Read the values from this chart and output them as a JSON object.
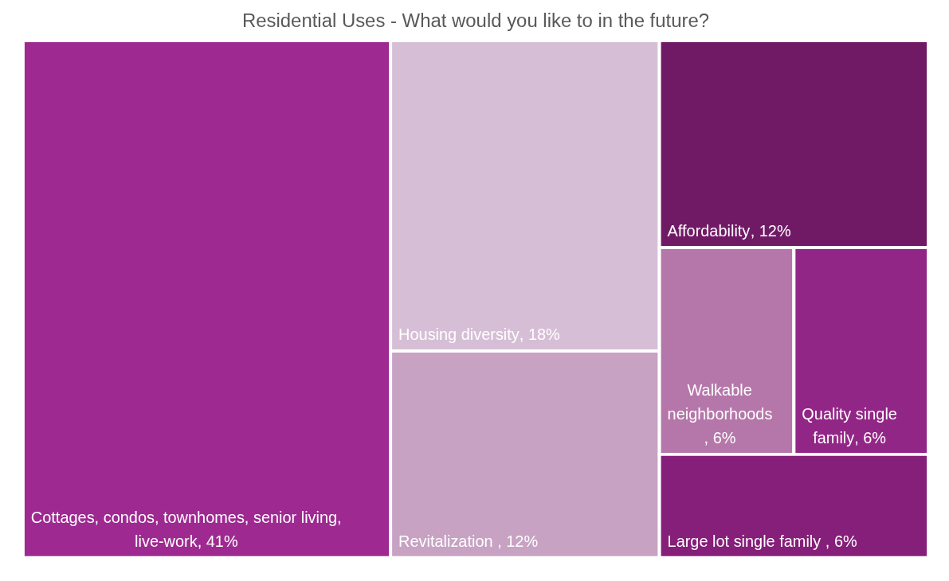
{
  "chart_data": {
    "type": "other",
    "title": "Residential Uses - What would you like to in the future?",
    "categories": [
      "Cottages, condos, townhomes, senior living, live-work",
      "Housing diversity",
      "Revitalization ",
      "Affordability",
      "Walkable neighborhoods ",
      "Quality single family",
      "Large lot single family "
    ],
    "values": [
      41,
      18,
      12,
      12,
      6,
      6,
      6
    ],
    "value_labels": [
      ", 41%",
      ", 18%",
      ", 12%",
      ", 12%",
      ", 6%",
      ", 6%",
      ", 6%"
    ],
    "colors": [
      "#9e2a91",
      "#d6bfd6",
      "#c7a2c3",
      "#701a66",
      "#b577aa",
      "#922686",
      "#851f79"
    ]
  }
}
